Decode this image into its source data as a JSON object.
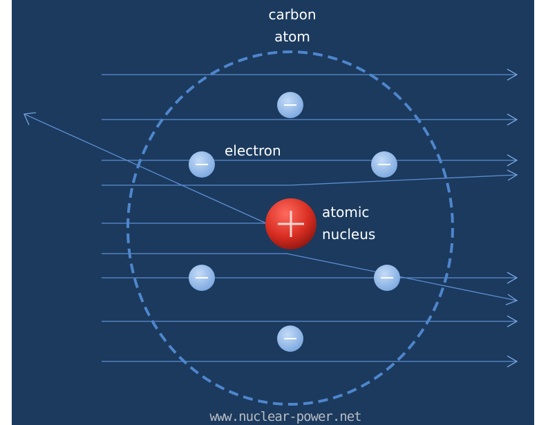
{
  "labels": {
    "atom": [
      "carbon",
      "atom"
    ],
    "electron": "electron",
    "nucleus": [
      "atomic",
      "nucleus"
    ]
  },
  "watermark": "www.nuclear-power.net"
}
